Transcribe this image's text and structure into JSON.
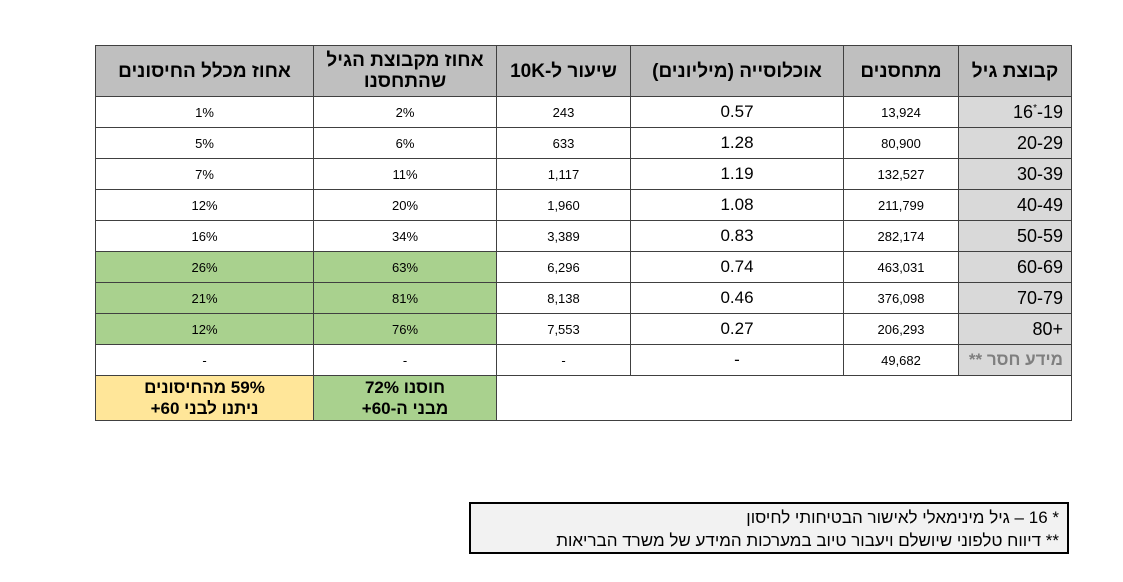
{
  "headers": [
    "קבוצת גיל",
    "מתחסנים",
    "אוכלוסייה (מיליונים)",
    "שיעור ל-10K",
    "אחוז מקבוצת הגיל שהתחסנו",
    "אחוז מכלל החיסונים"
  ],
  "rows": [
    {
      "age": "-19",
      "age_prefix": "16",
      "age_mark": "*",
      "vaccinated": "13,924",
      "population": "0.57",
      "rate": "243",
      "pct_group": "2%",
      "pct_total": "1%"
    },
    {
      "age": "20-29",
      "vaccinated": "80,900",
      "population": "1.28",
      "rate": "633",
      "pct_group": "6%",
      "pct_total": "5%"
    },
    {
      "age": "30-39",
      "vaccinated": "132,527",
      "population": "1.19",
      "rate": "1,117",
      "pct_group": "11%",
      "pct_total": "7%"
    },
    {
      "age": "40-49",
      "vaccinated": "211,799",
      "population": "1.08",
      "rate": "1,960",
      "pct_group": "20%",
      "pct_total": "12%"
    },
    {
      "age": "50-59",
      "vaccinated": "282,174",
      "population": "0.83",
      "rate": "3,389",
      "pct_group": "34%",
      "pct_total": "16%"
    },
    {
      "age": "60-69",
      "vaccinated": "463,031",
      "population": "0.74",
      "rate": "6,296",
      "pct_group": "63%",
      "pct_total": "26%"
    },
    {
      "age": "70-79",
      "vaccinated": "376,098",
      "population": "0.46",
      "rate": "8,138",
      "pct_group": "81%",
      "pct_total": "21%"
    },
    {
      "age": "80+",
      "vaccinated": "206,293",
      "population": "0.27",
      "rate": "7,553",
      "pct_group": "76%",
      "pct_total": "12%"
    },
    {
      "age": "מידע חסר **",
      "vaccinated": "49,682",
      "population": "-",
      "rate": "-",
      "pct_group": "-",
      "pct_total": "-"
    }
  ],
  "summary": {
    "pct_group": [
      "חוסנו 72%",
      "מבני ה-60+"
    ],
    "pct_total": [
      "59% מהחיסונים",
      "ניתנו לבני 60+"
    ]
  },
  "colors": {
    "header": "#bfbfbf",
    "age_column": "#d9d9d9",
    "highlight_green": "#a9d18e",
    "highlight_yellow": "#ffe699"
  },
  "footnotes": [
    "* 16 – גיל מינימאלי לאישור הבטיחותי לחיסון",
    "** דיווח טלפוני שיושלם ויעבור טיוב במערכות המידע של משרד הבריאות"
  ]
}
